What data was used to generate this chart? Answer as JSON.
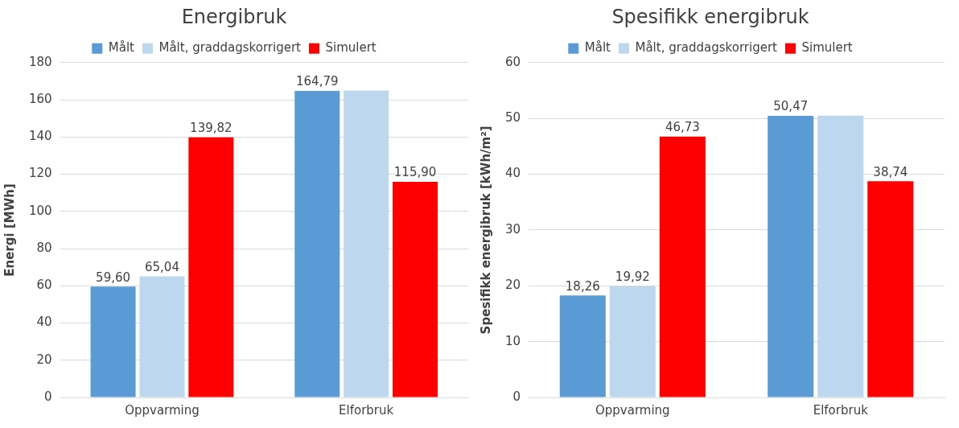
{
  "chart_data": [
    {
      "type": "bar",
      "title": "Energibruk",
      "ylabel": "Energi [MWh]",
      "categories": [
        "Oppvarming",
        "Elforbruk"
      ],
      "ylim": [
        0,
        180
      ],
      "yticks": [
        0,
        20,
        40,
        60,
        80,
        100,
        120,
        140,
        160,
        180
      ],
      "grid": "y",
      "legend": "top",
      "series": [
        {
          "name": "Målt",
          "color": "#5b9bd5",
          "values": [
            59.6,
            164.79
          ],
          "value_labels": [
            "59,60",
            "164,79"
          ]
        },
        {
          "name": "Målt, graddagskorrigert",
          "color": "#bdd7ee",
          "values": [
            65.04,
            165
          ],
          "value_labels": [
            "65,04",
            null
          ]
        },
        {
          "name": "Simulert",
          "color": "#ff0000",
          "values": [
            139.82,
            115.9
          ],
          "value_labels": [
            "139,82",
            "115,90"
          ]
        }
      ]
    },
    {
      "type": "bar",
      "title": "Spesifikk energibruk",
      "ylabel": "Spesifikk energibruk [kWh/m²]",
      "categories": [
        "Oppvarming",
        "Elforbruk"
      ],
      "ylim": [
        0,
        60
      ],
      "yticks": [
        0,
        10,
        20,
        30,
        40,
        50,
        60
      ],
      "grid": "y",
      "legend": "top",
      "series": [
        {
          "name": "Målt",
          "color": "#5b9bd5",
          "values": [
            18.26,
            50.47
          ],
          "value_labels": [
            "18,26",
            "50,47"
          ]
        },
        {
          "name": "Målt, graddagskorrigert",
          "color": "#bdd7ee",
          "values": [
            19.92,
            50.5
          ],
          "value_labels": [
            "19,92",
            null
          ]
        },
        {
          "name": "Simulert",
          "color": "#ff0000",
          "values": [
            46.73,
            38.74
          ],
          "value_labels": [
            "46,73",
            "38,74"
          ]
        }
      ]
    }
  ]
}
